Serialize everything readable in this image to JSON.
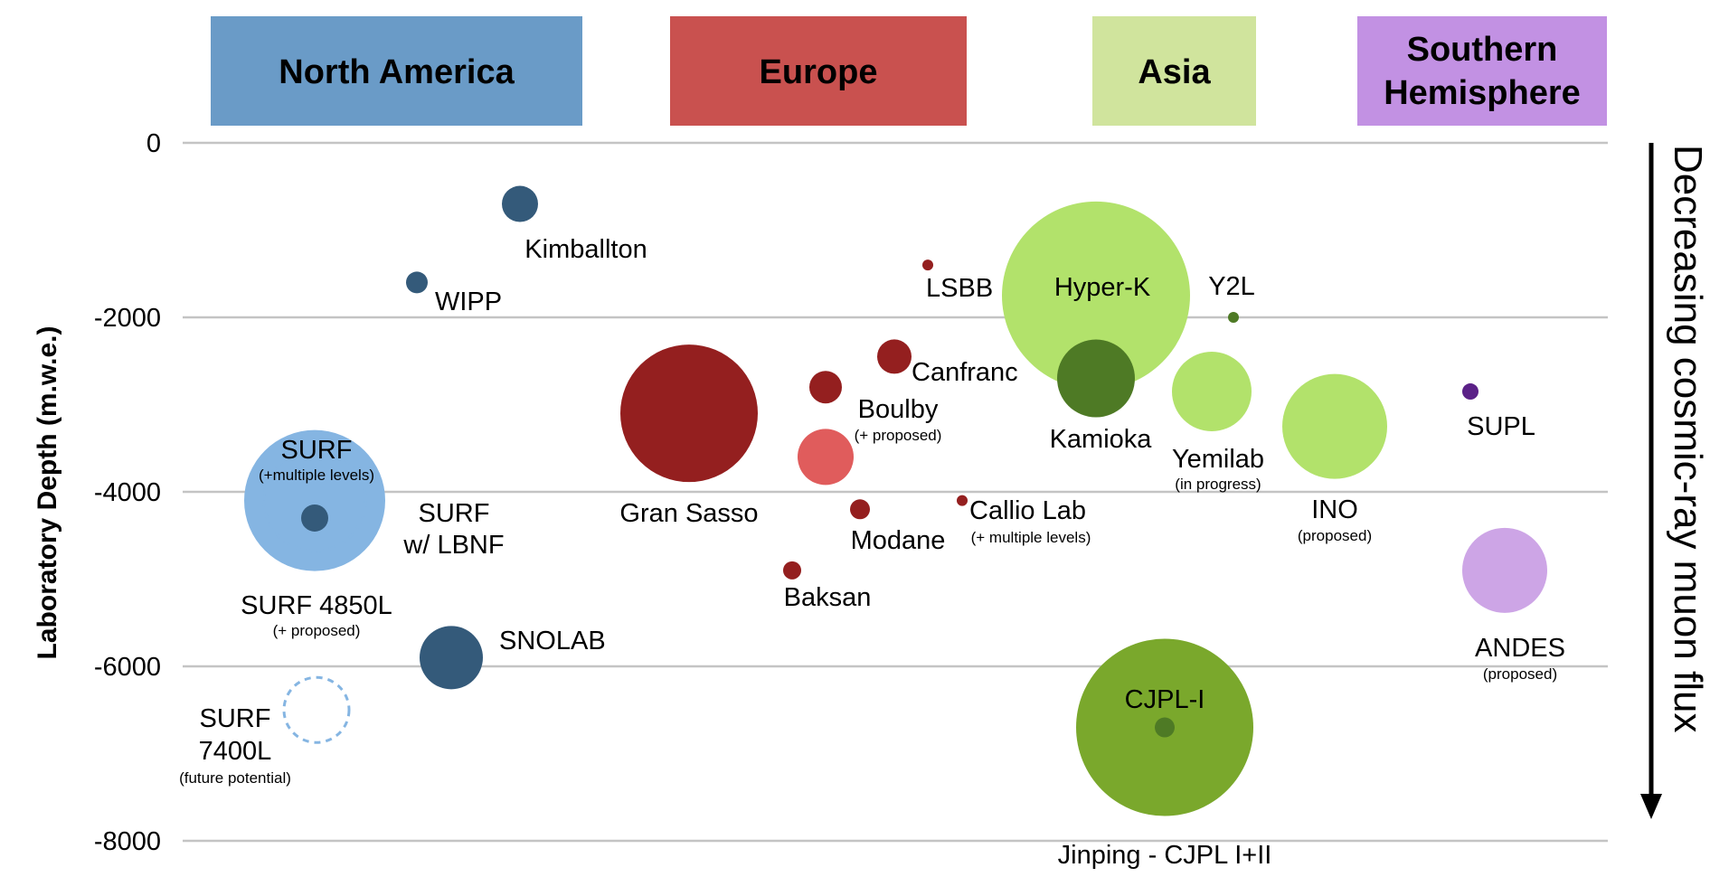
{
  "chart_data": {
    "type": "scatter",
    "ylabel": "Laboratory Depth (m.w.e.)",
    "ylim": [
      -8000,
      0
    ],
    "yticks": [
      {
        "value": 0,
        "label": "0"
      },
      {
        "value": -2000,
        "label": "-2000"
      },
      {
        "value": -4000,
        "label": "-4000"
      },
      {
        "value": -6000,
        "label": "-6000"
      },
      {
        "value": -8000,
        "label": "-8000"
      }
    ],
    "grid": true,
    "side_annotation": "Decreasing cosmic-ray muon flux",
    "regions": [
      {
        "name": "North America",
        "color": "#6a9bc7"
      },
      {
        "name": "Europe",
        "color": "#c9514f"
      },
      {
        "name": "Asia",
        "color": "#d0e49d"
      },
      {
        "name": "Southern Hemisphere",
        "color": "#c291e3"
      }
    ],
    "labs": [
      {
        "name": "Kimballton",
        "region": "North America",
        "depth": -700,
        "color": "#345a7a"
      },
      {
        "name": "WIPP",
        "region": "North America",
        "depth": -1600,
        "color": "#345a7a"
      },
      {
        "name": "SURF",
        "note": "(+multiple levels)",
        "region": "North America",
        "depth": -4100,
        "color": "#85b5e2"
      },
      {
        "name": "SURF 4850L",
        "note": "(+ proposed)",
        "region": "North America",
        "depth": -4300,
        "color": "#345a7a"
      },
      {
        "name": "SURF w/ LBNF",
        "region": "North America",
        "depth": -4100,
        "color": "#85b5e2"
      },
      {
        "name": "SNOLAB",
        "region": "North America",
        "depth": -5900,
        "color": "#345a7a"
      },
      {
        "name": "SURF 7400L",
        "note": "(future potential)",
        "region": "North America",
        "depth": -6500,
        "color": "#85b5e2"
      },
      {
        "name": "Gran Sasso",
        "region": "Europe",
        "depth": -3100,
        "color": "#941f1f"
      },
      {
        "name": "Boulby",
        "note": "(+ proposed)",
        "region": "Europe",
        "depth": -2800,
        "color": "#941f1f"
      },
      {
        "name": "Boulby (proposed)",
        "region": "Europe",
        "depth": -3600,
        "color": "#e05c5c"
      },
      {
        "name": "Canfranc",
        "region": "Europe",
        "depth": -2450,
        "color": "#941f1f"
      },
      {
        "name": "LSBB",
        "region": "Europe",
        "depth": -1400,
        "color": "#941f1f"
      },
      {
        "name": "Modane",
        "region": "Europe",
        "depth": -4200,
        "color": "#941f1f"
      },
      {
        "name": "Callio Lab",
        "note": "(+ multiple levels)",
        "region": "Europe",
        "depth": -4100,
        "color": "#941f1f"
      },
      {
        "name": "Baksan",
        "region": "Europe",
        "depth": -4900,
        "color": "#941f1f"
      },
      {
        "name": "Hyper-K",
        "region": "Asia",
        "depth": -1750,
        "color": "#b2e26b"
      },
      {
        "name": "Kamioka",
        "region": "Asia",
        "depth": -2700,
        "color": "#4e7a25"
      },
      {
        "name": "Y2L",
        "region": "Asia",
        "depth": -2000,
        "color": "#4e7a25"
      },
      {
        "name": "Yemilab",
        "note": "(in progress)",
        "region": "Asia",
        "depth": -2850,
        "color": "#b2e26b"
      },
      {
        "name": "INO",
        "note": "(proposed)",
        "region": "Asia",
        "depth": -3250,
        "color": "#b2e26b"
      },
      {
        "name": "CJPL-I",
        "region": "Asia",
        "depth": -6700,
        "color": "#4e7a25"
      },
      {
        "name": "Jinping - CJPL I+II",
        "region": "Asia",
        "depth": -6700,
        "color": "#7aa82c"
      },
      {
        "name": "SUPL",
        "region": "Southern Hemisphere",
        "depth": -2850,
        "color": "#5b2187"
      },
      {
        "name": "ANDES",
        "note": "(proposed)",
        "region": "Southern Hemisphere",
        "depth": -4900,
        "color": "#cda5e6"
      }
    ]
  }
}
